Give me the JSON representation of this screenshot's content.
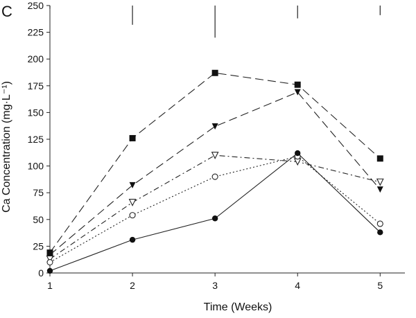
{
  "chart_data": {
    "type": "line",
    "panel_label": "C",
    "title": "",
    "xlabel": "Time (Weeks)",
    "ylabel": "Ca Concentration (mg·L⁻¹)",
    "x": [
      1,
      2,
      3,
      4,
      5
    ],
    "x_ticks": [
      "1",
      "2",
      "3",
      "4",
      "5"
    ],
    "xlim": [
      1,
      5.3
    ],
    "ylim": [
      0,
      250
    ],
    "y_ticks": [
      "0",
      "25",
      "50",
      "75",
      "100",
      "125",
      "150",
      "175",
      "200",
      "225",
      "250"
    ],
    "grid": false,
    "error_bars_top": [
      {
        "x": 1,
        "low": 247,
        "high": 250
      },
      {
        "x": 2,
        "low": 232,
        "high": 250
      },
      {
        "x": 3,
        "low": 220,
        "high": 250
      },
      {
        "x": 4,
        "low": 238,
        "high": 250
      },
      {
        "x": 5,
        "low": 241,
        "high": 250
      }
    ],
    "series": [
      {
        "name": "filled squares",
        "marker": "square-filled",
        "line": "long-dash",
        "values": [
          19,
          126,
          187,
          176,
          107
        ]
      },
      {
        "name": "filled down-triangles",
        "marker": "triangle-down-filled",
        "line": "long-dash",
        "values": [
          17,
          82,
          137,
          169,
          78
        ]
      },
      {
        "name": "open down-triangles",
        "marker": "triangle-down-open",
        "line": "dash-dot",
        "values": [
          13,
          66,
          110,
          104,
          85
        ]
      },
      {
        "name": "open circles",
        "marker": "circle-open",
        "line": "dotted",
        "values": [
          10,
          54,
          90,
          109,
          46
        ]
      },
      {
        "name": "filled circles",
        "marker": "circle-filled",
        "line": "solid",
        "values": [
          2,
          31,
          51,
          112,
          38
        ]
      }
    ]
  }
}
